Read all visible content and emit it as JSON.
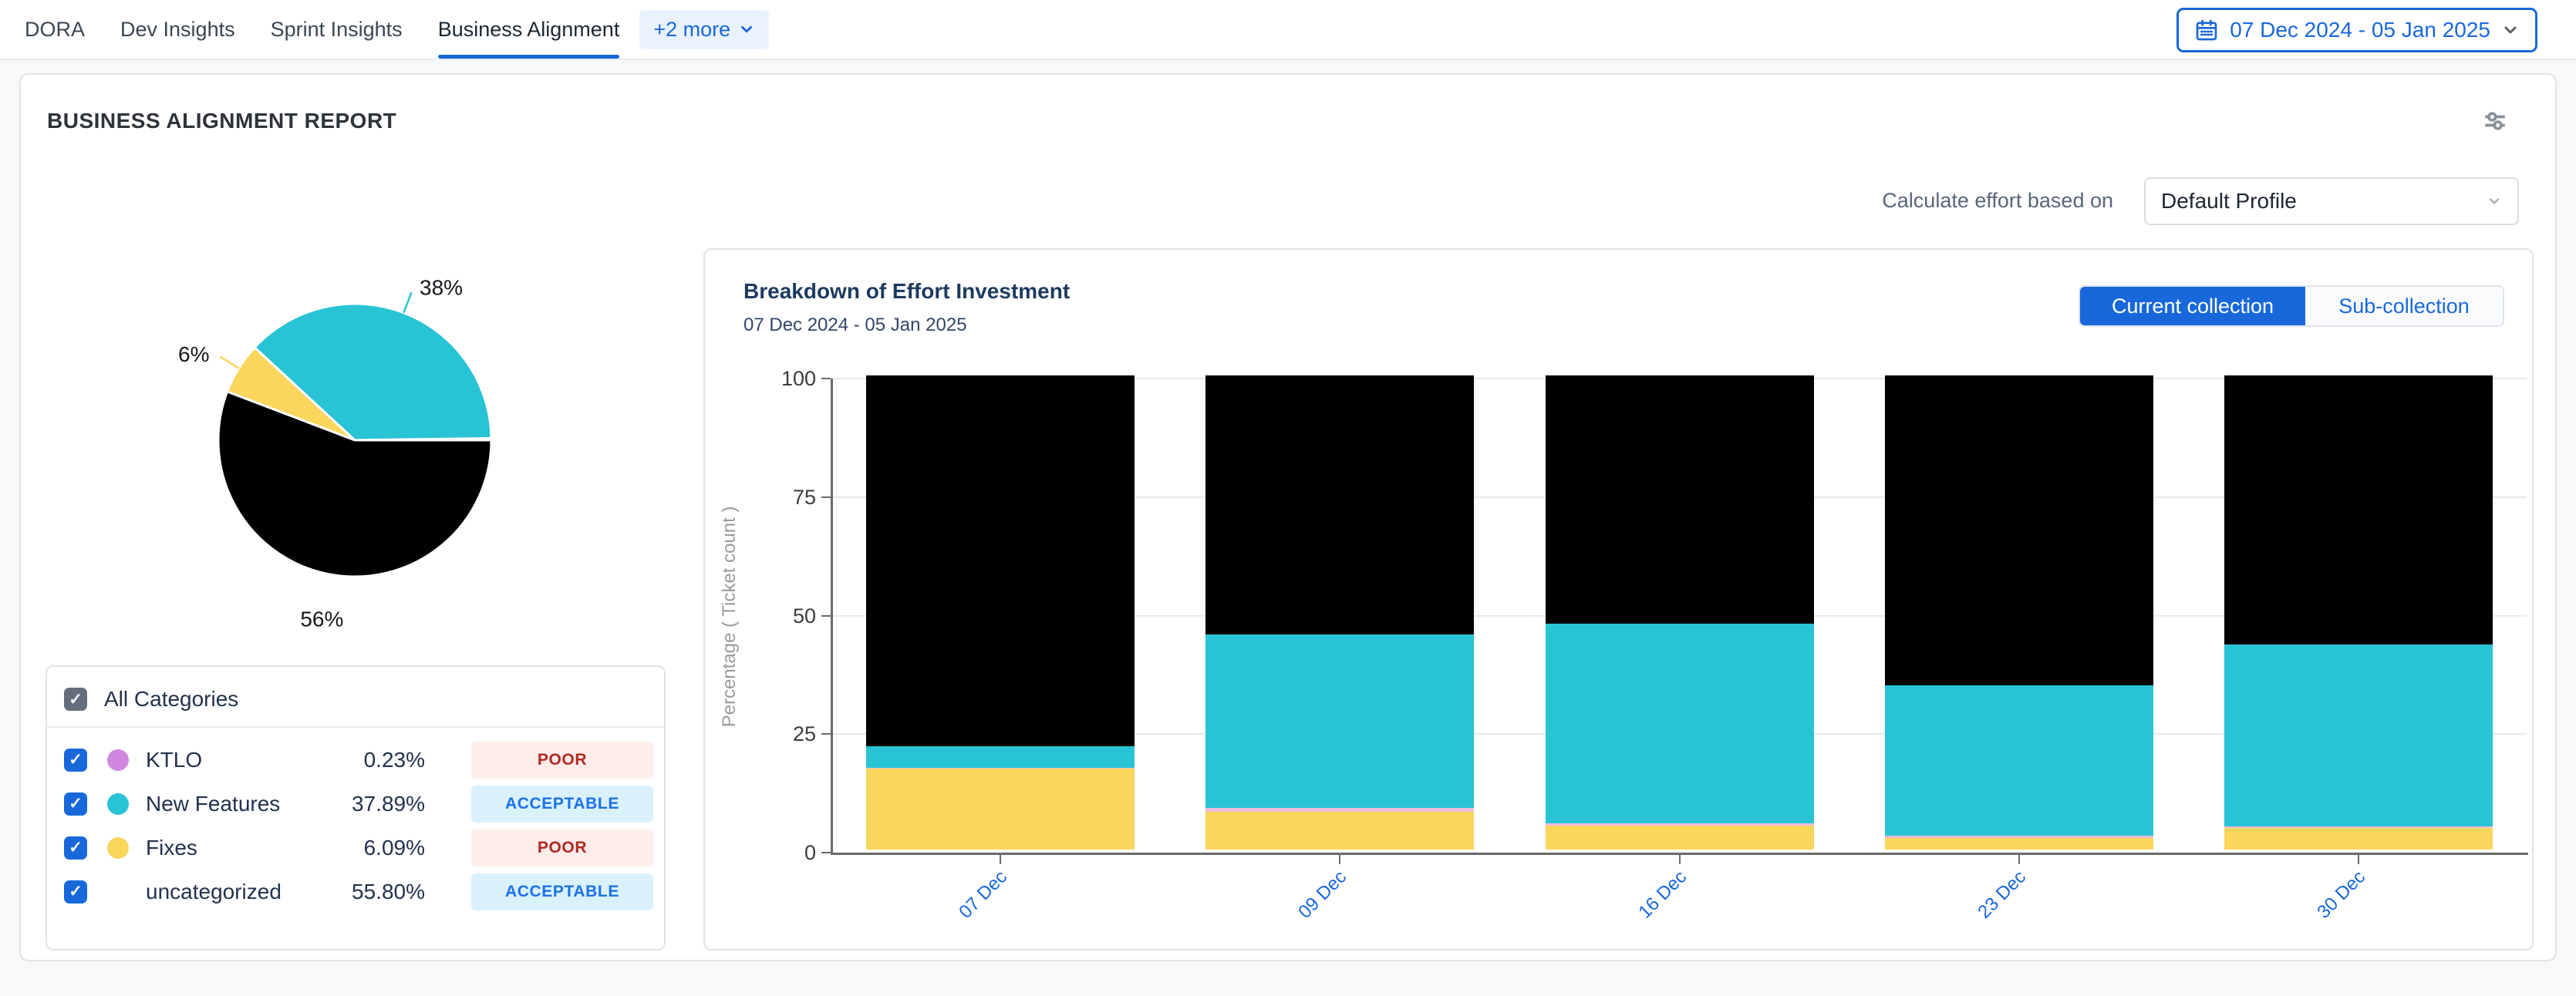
{
  "topbar": {
    "tabs": [
      {
        "label": "DORA"
      },
      {
        "label": "Dev Insights"
      },
      {
        "label": "Sprint Insights"
      },
      {
        "label": "Business Alignment"
      }
    ],
    "active_tab": "Business Alignment",
    "more_chip": "+2 more",
    "date_range": "07 Dec 2024 - 05 Jan 2025"
  },
  "report": {
    "title": "BUSINESS ALIGNMENT REPORT",
    "effort_label": "Calculate effort based on",
    "profile_value": "Default Profile"
  },
  "categories": {
    "header": "All Categories",
    "rows": [
      {
        "name": "KTLO",
        "value": "0.23%",
        "badge": "POOR",
        "dot_color": "#cf87e0",
        "badge_bg": "#fdecea",
        "badge_fg": "#b02a23"
      },
      {
        "name": "New Features",
        "value": "37.89%",
        "badge": "ACCEPTABLE",
        "dot_color": "#28c4d5",
        "badge_bg": "#d9f1fb",
        "badge_fg": "#1a72e8"
      },
      {
        "name": "Fixes",
        "value": "6.09%",
        "badge": "POOR",
        "dot_color": "#fbd65c",
        "badge_bg": "#fdecea",
        "badge_fg": "#b02a23"
      },
      {
        "name": "uncategorized",
        "value": "55.80%",
        "badge": "ACCEPTABLE",
        "dot_color": null,
        "badge_bg": "#d9f1fb",
        "badge_fg": "#1a72e8"
      }
    ]
  },
  "breakdown": {
    "btn_current": "Current collection",
    "btn_sub": "Sub-collection"
  },
  "colors": {
    "accent_blue": "#1868db",
    "poor_red": "#b02a23",
    "acceptable_blue": "#1a72e8"
  },
  "chart_data": [
    {
      "type": "pie",
      "title": "Effort distribution by category",
      "start_angle_deg": 0,
      "direction": "counterclockwise",
      "slices": [
        {
          "label": "KTLO",
          "value": 0.23,
          "pct_label": "",
          "color": "#cf87e0",
          "show_connector": false
        },
        {
          "label": "New Features",
          "value": 37.89,
          "pct_label": "38%",
          "color": "#28c4d5",
          "show_connector": true
        },
        {
          "label": "Fixes",
          "value": 6.09,
          "pct_label": "6%",
          "color": "#fbd65c",
          "show_connector": true
        },
        {
          "label": "uncategorized",
          "value": 55.8,
          "pct_label": "56%",
          "color": "#000000",
          "show_connector": false
        }
      ]
    },
    {
      "type": "bar",
      "stacked": true,
      "title": "Breakdown of Effort Investment",
      "subtitle": "07 Dec 2024 - 05 Jan 2025",
      "categories": [
        "07 Dec",
        "09 Dec",
        "16 Dec",
        "23 Dec",
        "30 Dec"
      ],
      "series": [
        {
          "name": "Fixes",
          "color": "#fbd65c",
          "values": [
            17,
            8,
            5,
            2.5,
            4.5
          ]
        },
        {
          "name": "KTLO",
          "color": "#eebbd9",
          "values": [
            0.2,
            0.8,
            0.5,
            0.4,
            0.3
          ]
        },
        {
          "name": "New Features",
          "color": "#28c4d5",
          "values": [
            4.6,
            36.5,
            42.2,
            31.7,
            38.4
          ]
        },
        {
          "name": "uncategorized",
          "color": "#000000",
          "values": [
            78.2,
            54.7,
            52.3,
            65.4,
            56.8
          ]
        }
      ],
      "ylabel": "Percentage ( Ticket count )",
      "xlabel": "",
      "ylim": [
        0,
        100
      ],
      "yticks": [
        0,
        25,
        50,
        75,
        100
      ],
      "grid": true,
      "legend": "none"
    }
  ]
}
